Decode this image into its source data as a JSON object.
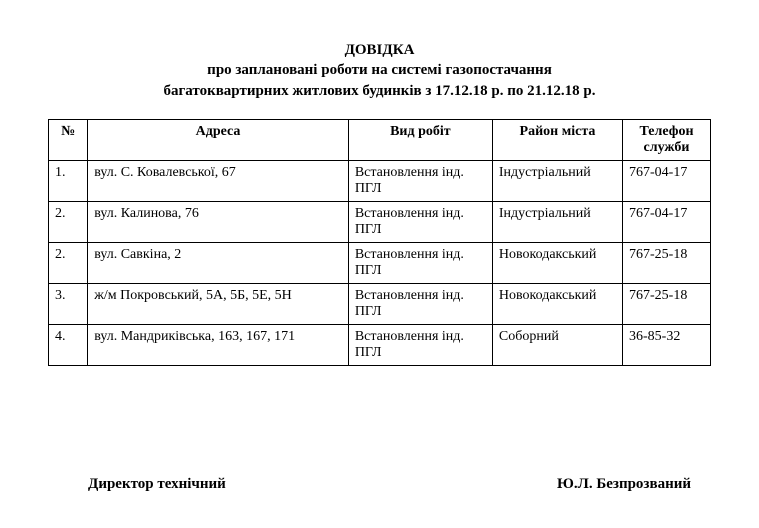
{
  "title": {
    "line1": "ДОВІДКА",
    "line2": "про заплановані роботи на системі газопостачання",
    "line3": "багатоквартирних житлових будинків з 17.12.18 р. по 21.12.18 р."
  },
  "table": {
    "headers": {
      "num": "№",
      "address": "Адреса",
      "work": "Вид робіт",
      "district": "Район міста",
      "phone": "Телефон служби"
    },
    "rows": [
      {
        "num": "1.",
        "address": "вул. С. Ковалевської, 67",
        "work": "Встановлення інд. ПГЛ",
        "district": "Індустріальний",
        "phone": "767-04-17"
      },
      {
        "num": "2.",
        "address": "вул. Калинова, 76",
        "work": "Встановлення інд. ПГЛ",
        "district": "Індустріальний",
        "phone": "767-04-17"
      },
      {
        "num": "2.",
        "address": "вул. Савкіна, 2",
        "work": "Встановлення інд. ПГЛ",
        "district": "Новокодакський",
        "phone": "767-25-18"
      },
      {
        "num": "3.",
        "address": "ж/м Покровський, 5А, 5Б, 5Е, 5Н",
        "work": "Встановлення інд. ПГЛ",
        "district": "Новокодакський",
        "phone": "767-25-18"
      },
      {
        "num": "4.",
        "address": "вул. Мандриківська, 163, 167, 171",
        "work": "Встановлення інд. ПГЛ",
        "district": "Соборний",
        "phone": "36-85-32"
      }
    ]
  },
  "signature": {
    "left": "Директор технічний",
    "right": "Ю.Л. Безпрозваний"
  }
}
